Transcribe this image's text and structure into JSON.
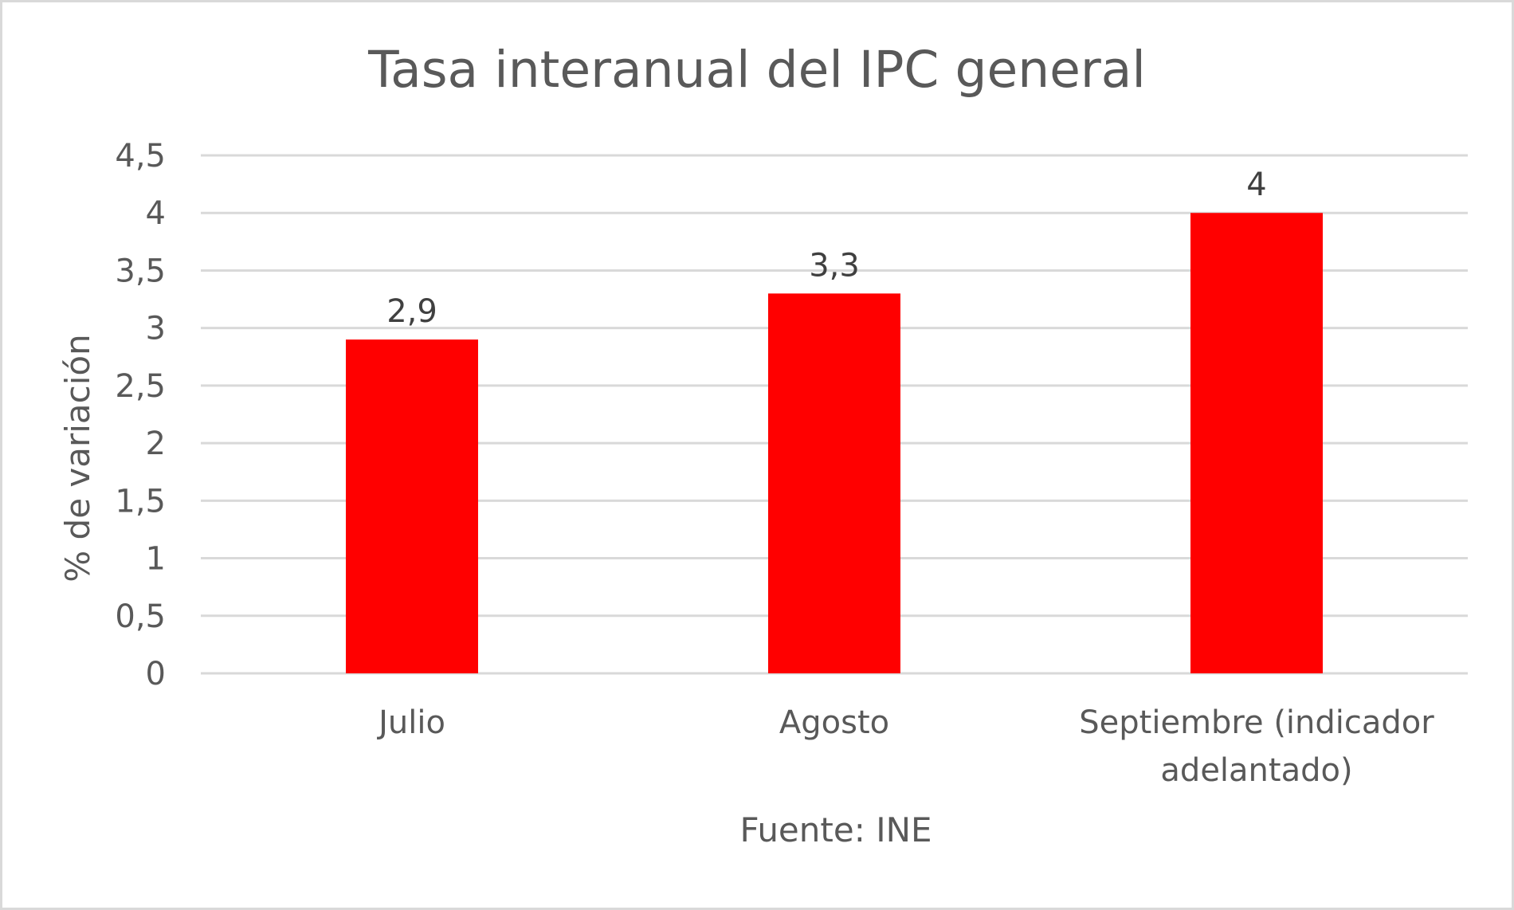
{
  "chart_data": {
    "type": "bar",
    "title": "Tasa interanual del IPC general",
    "xlabel": "Fuente: INE",
    "ylabel": "% de variación",
    "categories": [
      "Julio",
      "Agosto",
      "Septiembre (indicador adelantado)"
    ],
    "category_lines": [
      [
        "Julio"
      ],
      [
        "Agosto"
      ],
      [
        "Septiembre (indicador",
        "adelantado)"
      ]
    ],
    "values": [
      2.9,
      3.3,
      4
    ],
    "data_labels": [
      "2,9",
      "3,3",
      "4"
    ],
    "ylim": [
      0,
      4.5
    ],
    "y_ticks": [
      0,
      0.5,
      1,
      1.5,
      2,
      2.5,
      3,
      3.5,
      4,
      4.5
    ],
    "y_tick_labels": [
      "0",
      "0,5",
      "1",
      "1,5",
      "2",
      "2,5",
      "3",
      "3,5",
      "4",
      "4,5"
    ],
    "grid": true,
    "legend": "none",
    "colors": {
      "bar": "#ff0000",
      "grid": "#d9d9d9",
      "text": "#595959",
      "frame": "#d9d9d9"
    }
  }
}
